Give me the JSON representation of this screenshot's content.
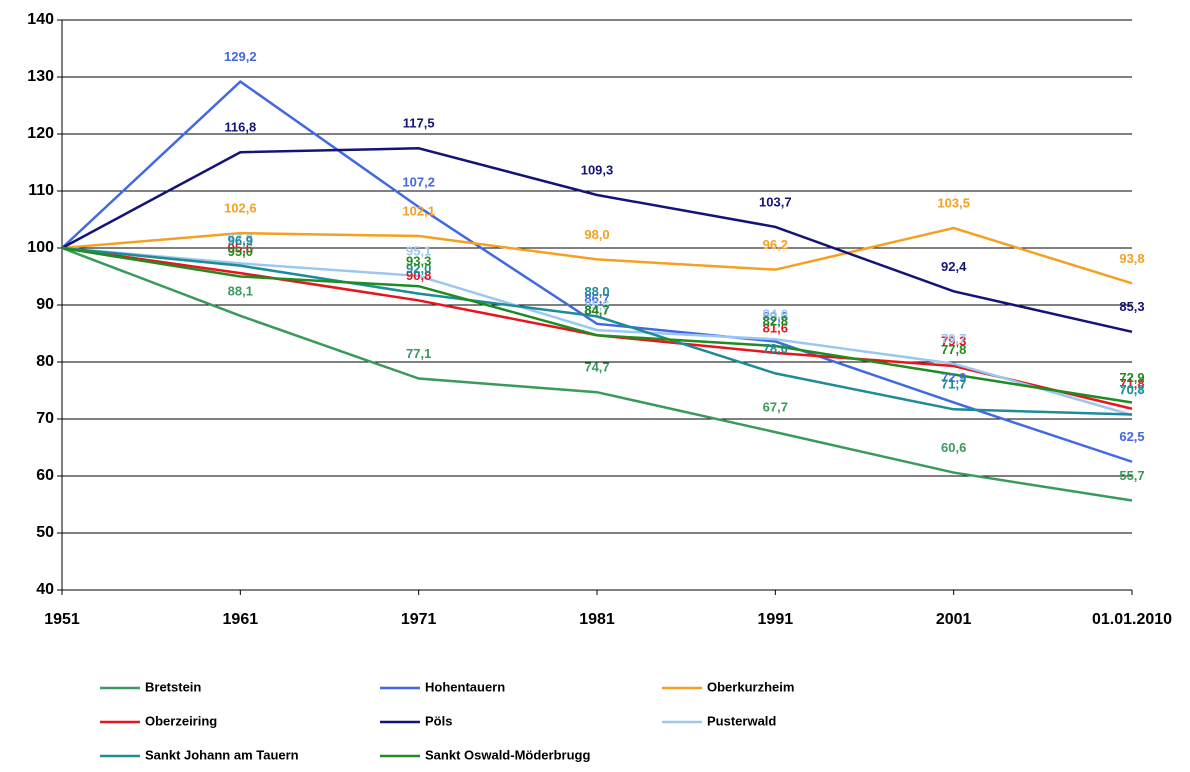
{
  "chart_data": {
    "type": "line",
    "categories": [
      "1951",
      "1961",
      "1971",
      "1981",
      "1991",
      "2001",
      "01.01.2010"
    ],
    "ylim": [
      40,
      140
    ],
    "yticks": [
      40,
      50,
      60,
      70,
      80,
      90,
      100,
      110,
      120,
      130,
      140
    ],
    "grid": true,
    "series": [
      {
        "name": "Bretstein",
        "color": "#3a9a5c",
        "values": [
          100,
          88.1,
          77.1,
          74.7,
          67.7,
          60.6,
          55.7
        ],
        "value_labels": [
          null,
          "88,1",
          "77,1",
          "74,7",
          "67,7",
          "60,6",
          "55,7"
        ]
      },
      {
        "name": "Hohentauern",
        "color": "#4169e1",
        "values": [
          100,
          129.2,
          107.2,
          86.7,
          83.6,
          72.9,
          62.5
        ],
        "value_labels": [
          null,
          "129,2",
          "107,2",
          "86,7",
          "83,6",
          "72,9",
          "62,5"
        ]
      },
      {
        "name": "Oberkurzheim",
        "color": "#f5a020",
        "values": [
          100,
          102.6,
          102.1,
          98.0,
          96.2,
          103.5,
          93.8
        ],
        "value_labels": [
          null,
          "102,6",
          "102,1",
          "98,0",
          "96,2",
          "103,5",
          "93,8"
        ]
      },
      {
        "name": "Oberzeiring",
        "color": "#e8141e",
        "values": [
          100,
          95.6,
          90.8,
          84.7,
          81.6,
          79.3,
          71.8
        ],
        "value_labels": [
          null,
          "95,6",
          "90,8",
          "84,7",
          "81,6",
          "79,3",
          "71,8"
        ]
      },
      {
        "name": "Pöls",
        "color": "#141478",
        "values": [
          100,
          116.8,
          117.5,
          109.3,
          103.7,
          92.4,
          85.3
        ],
        "value_labels": [
          null,
          "116,8",
          "117,5",
          "109,3",
          "103,7",
          "92,4",
          "85,3"
        ]
      },
      {
        "name": "Pusterwald",
        "color": "#9cc8f0",
        "values": [
          100,
          97.3,
          95.1,
          85.6,
          84.0,
          79.7,
          70.7
        ],
        "value_labels": [
          null,
          "97,3",
          "95,1",
          "85,6",
          "84,0",
          "79,7",
          "70,7"
        ]
      },
      {
        "name": "Sankt Johann am Tauern",
        "color": "#1e8c96",
        "values": [
          100,
          96.9,
          92.0,
          88.0,
          78.0,
          71.7,
          70.8
        ],
        "value_labels": [
          null,
          "96,9",
          "92,0",
          "88,0",
          "78,0",
          "71,7",
          "70,8"
        ]
      },
      {
        "name": "Sankt Oswald-Möderbrugg",
        "color": "#1e8c1e",
        "values": [
          100,
          95.0,
          93.3,
          84.7,
          82.8,
          77.8,
          72.9
        ],
        "value_labels": [
          null,
          "95,0",
          "93,3",
          "84,7",
          "82,8",
          "77,8",
          "72,9"
        ]
      }
    ]
  }
}
